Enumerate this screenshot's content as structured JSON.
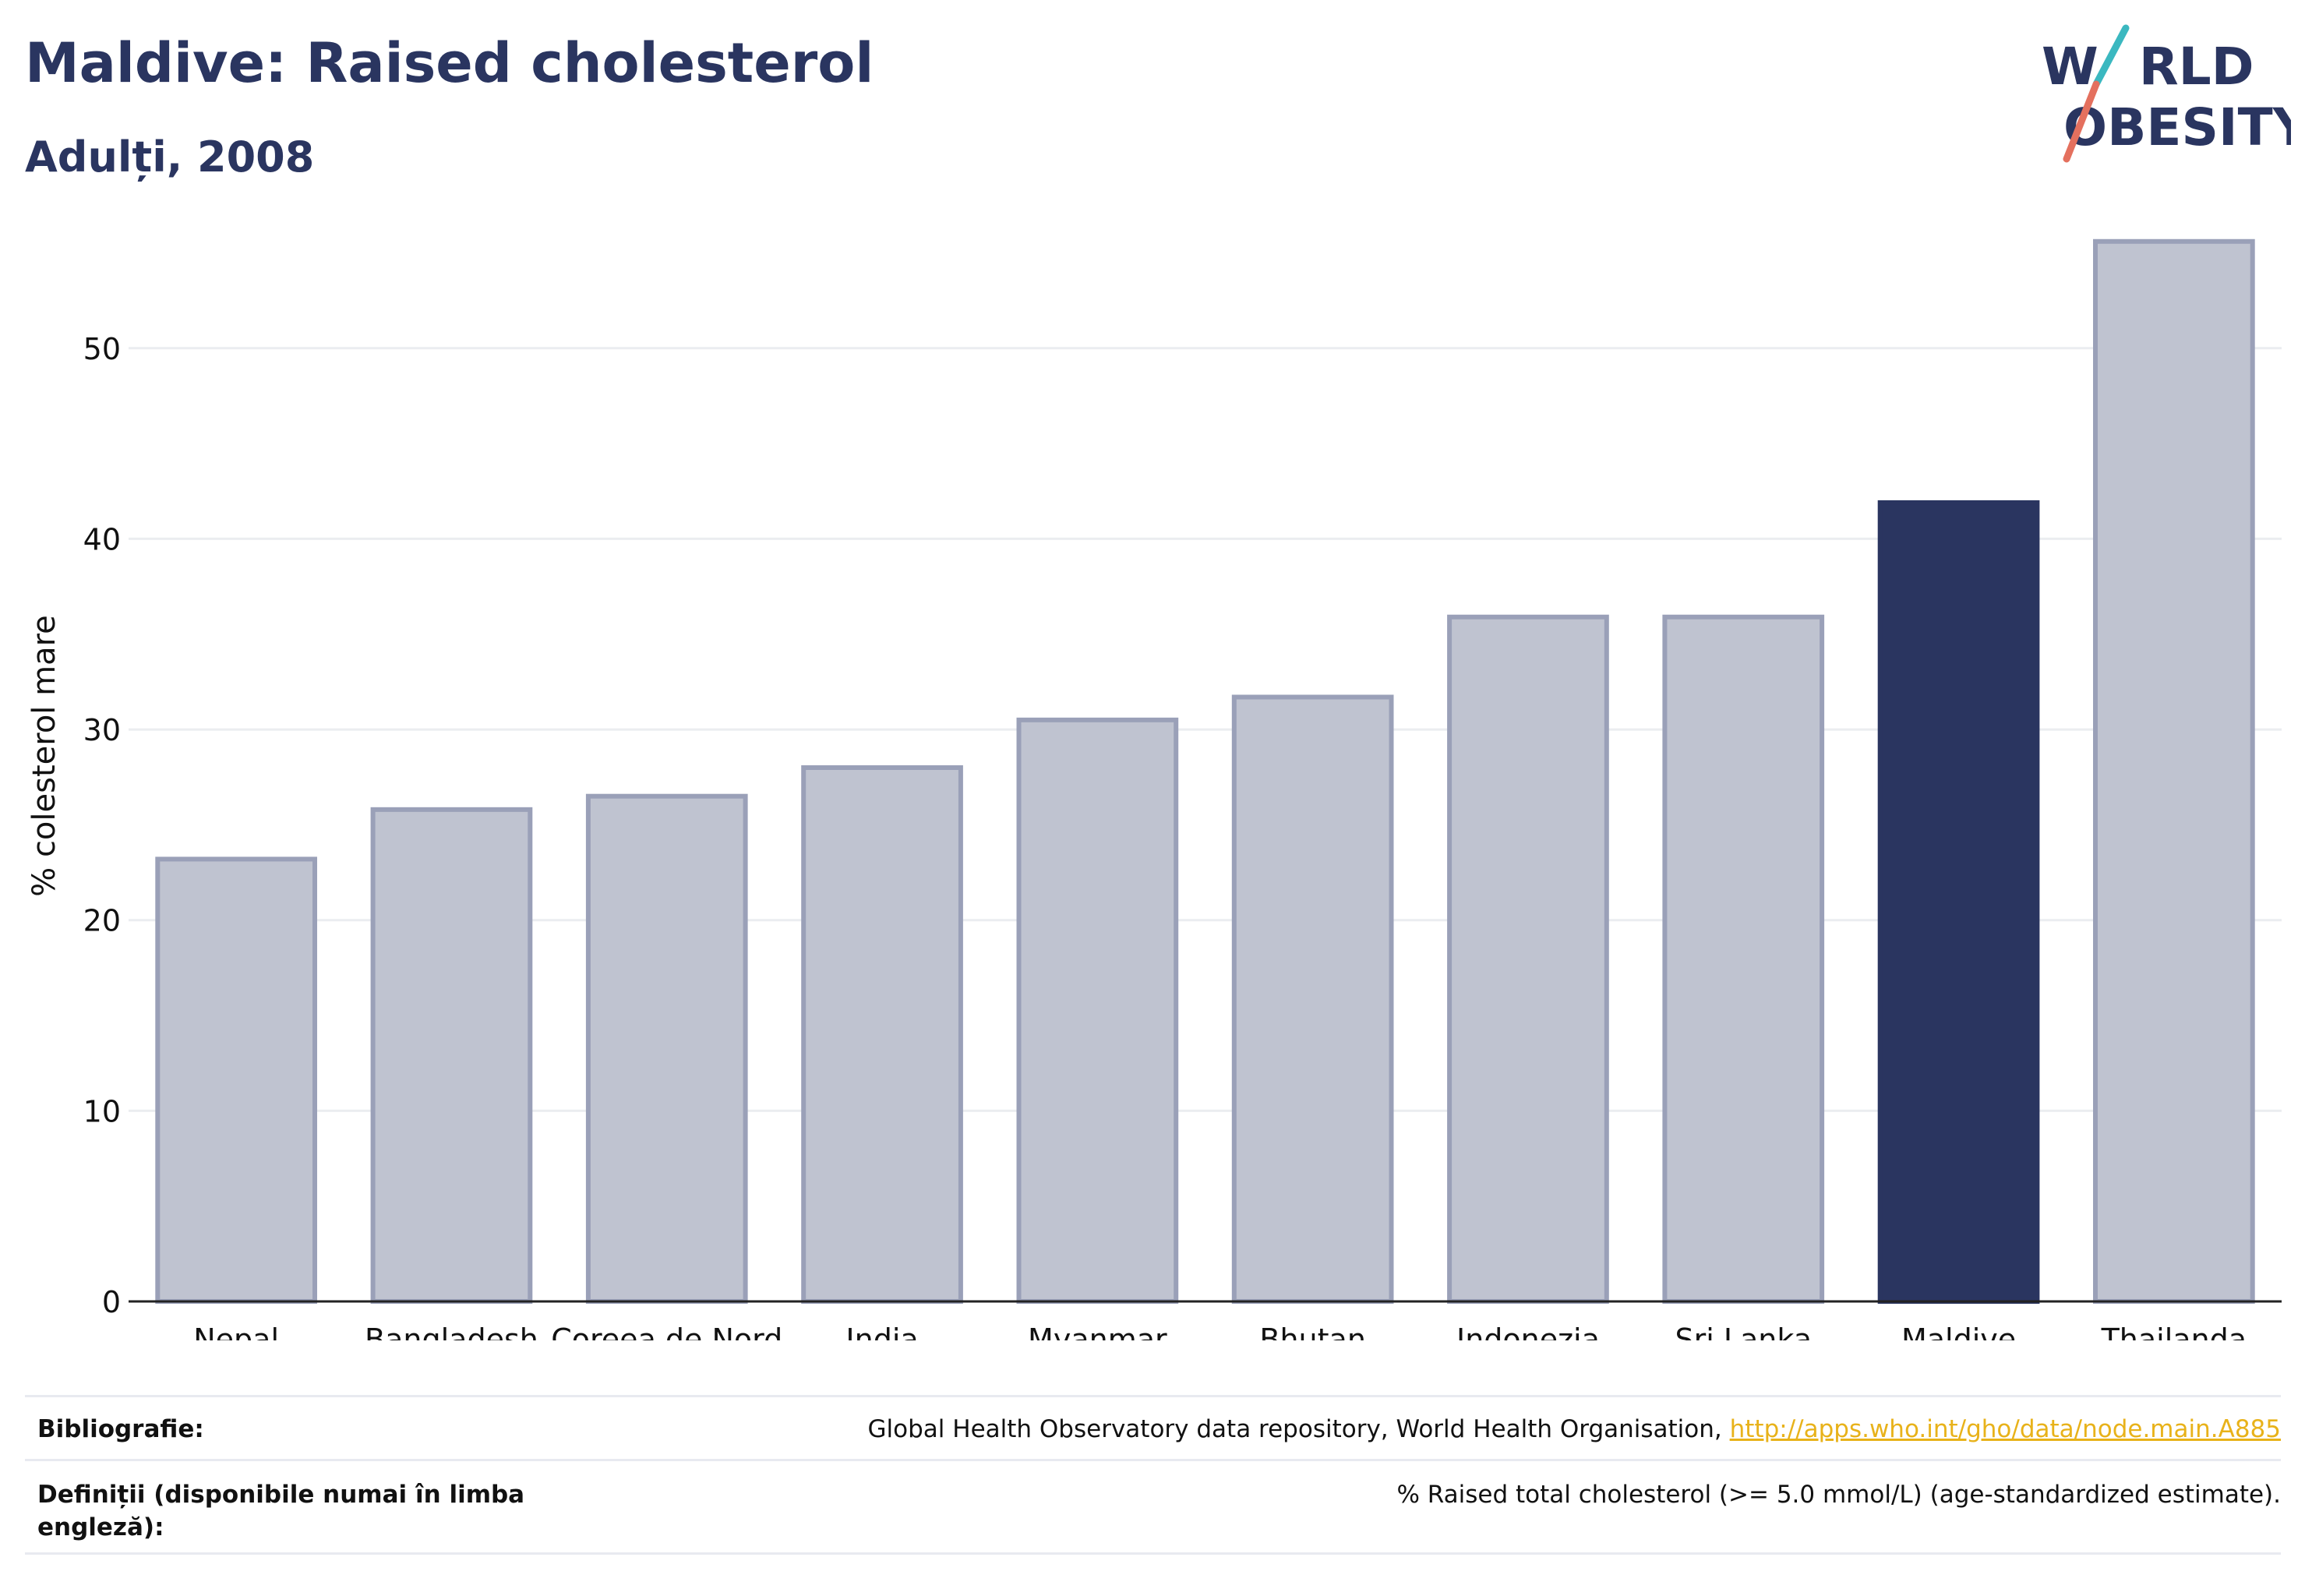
{
  "header": {
    "title": "Maldive: Raised cholesterol",
    "subtitle": "Adulți, 2008"
  },
  "logo": {
    "line1": "W",
    "line1b": "RLD",
    "line2": "BESITY",
    "text": "WORLD OBESITY",
    "colors": {
      "text": "#2a3560",
      "slash_top": "#3bb8c0",
      "slash_bottom": "#e4705e"
    }
  },
  "chart_data": {
    "type": "bar",
    "categories": [
      "Nepal",
      "Bangladesh",
      "Coreea de Nord",
      "India",
      "Myanmar",
      "Bhutan",
      "Indonezia",
      "Sri Lanka",
      "Maldive",
      "Thailanda"
    ],
    "values": [
      23.2,
      25.8,
      26.5,
      28.0,
      30.5,
      31.7,
      35.9,
      35.9,
      41.9,
      55.6
    ],
    "highlight": "Maldive",
    "ylabel": "% colesterol mare",
    "xlabel": "",
    "ylim": [
      0,
      56
    ],
    "yticks": [
      0,
      10,
      20,
      30,
      40,
      50
    ],
    "grid": true,
    "colors": {
      "bar": "#bfc3d0",
      "bar_edge": "#9aa0b8",
      "highlight": "#2a3560",
      "grid": "#ebedf0",
      "axis": "#222222"
    }
  },
  "footer": {
    "source_label": "Bibliografie:",
    "source_text": "Global Health Observatory data repository, World Health Organisation, ",
    "source_link": "http://apps.who.int/gho/data/node.main.A885",
    "definition_label": "Definiții (disponibile numai în limba engleză):",
    "definition_text": "% Raised total cholesterol (>= 5.0 mmol/L) (age-standardized estimate)."
  }
}
